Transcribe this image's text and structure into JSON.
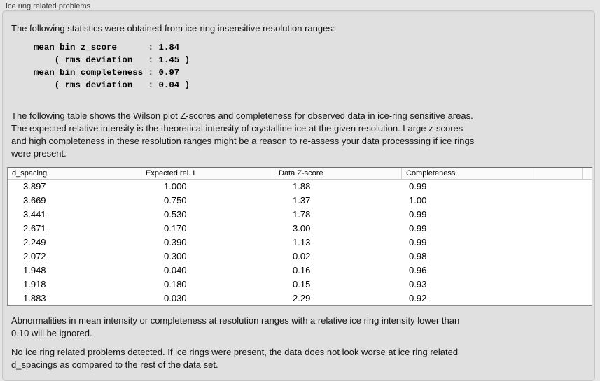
{
  "panel": {
    "title": "Ice ring related problems"
  },
  "intro": "The following statistics were obtained from ice-ring insensitive resolution ranges:",
  "stats_block": "mean bin z_score      : 1.84\n    ( rms deviation   : 1.45 )\nmean bin completeness : 0.97\n    ( rms deviation   : 0.04 )",
  "stats": {
    "mean_bin_z_score": "1.84",
    "z_score_rms_deviation": "1.45",
    "mean_bin_completeness": "0.97",
    "completeness_rms_deviation": "0.04"
  },
  "table_note": "The following table shows the Wilson plot Z-scores and completeness for observed data in ice-ring sensitive areas.\nThe expected relative intensity is the theoretical intensity of crystalline ice at the given resolution. Large z-scores\nand high completeness in these resolution ranges might be a reason to re-assess your data processsing if ice rings\nwere present.",
  "table": {
    "columns": [
      "d_spacing",
      "Expected rel. I",
      "Data Z-score",
      "Completeness",
      "",
      ""
    ],
    "rows": [
      [
        "3.897",
        "1.000",
        "1.88",
        "0.99"
      ],
      [
        "3.669",
        "0.750",
        "1.37",
        "1.00"
      ],
      [
        "3.441",
        "0.530",
        "1.78",
        "0.99"
      ],
      [
        "2.671",
        "0.170",
        "3.00",
        "0.99"
      ],
      [
        "2.249",
        "0.390",
        "1.13",
        "0.99"
      ],
      [
        "2.072",
        "0.300",
        "0.02",
        "0.98"
      ],
      [
        "1.948",
        "0.040",
        "0.16",
        "0.96"
      ],
      [
        "1.918",
        "0.180",
        "0.15",
        "0.93"
      ],
      [
        "1.883",
        "0.030",
        "2.29",
        "0.92"
      ]
    ]
  },
  "ignore_note": "Abnormalities in mean intensity or completeness at resolution ranges with a relative ice ring intensity lower than\n0.10 will be ignored.",
  "conclusion": "No ice ring related problems detected. If ice rings were present, the data does not look worse at ice ring related\nd_spacings as compared to the rest of the data set.",
  "colors": {
    "page_bg": "#e5e5e5",
    "groupbox_bg": "#e0e0e0",
    "groupbox_border": "#c6c6c6",
    "table_bg": "#ffffff",
    "table_border": "#8c8c8c",
    "header_divider": "#d4d4d4",
    "text": "#141414"
  }
}
